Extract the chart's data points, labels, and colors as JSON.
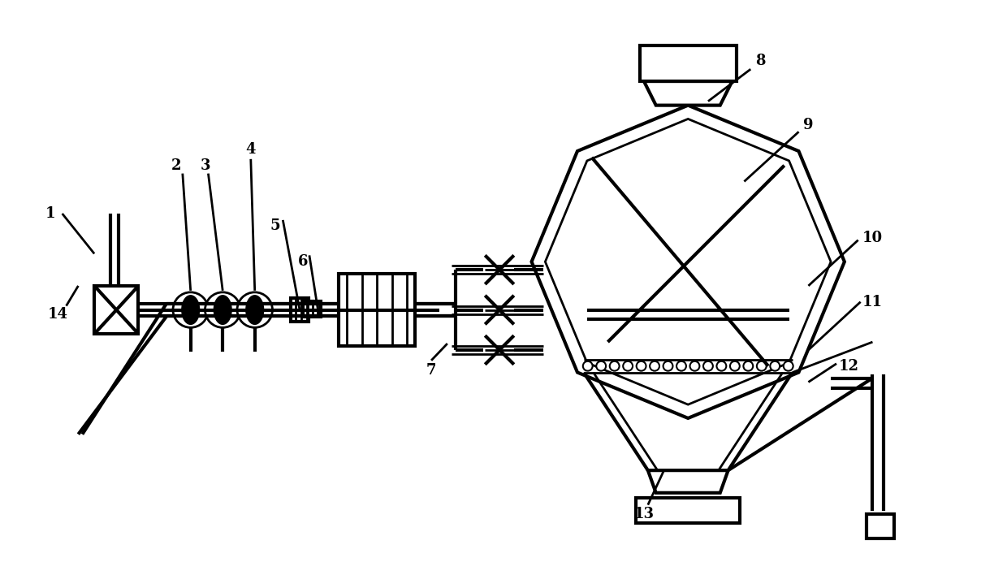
{
  "bg_color": "#ffffff",
  "line_color": "#000000",
  "lw": 2.0,
  "tlw": 3.0,
  "fig_width": 12.4,
  "fig_height": 6.92
}
